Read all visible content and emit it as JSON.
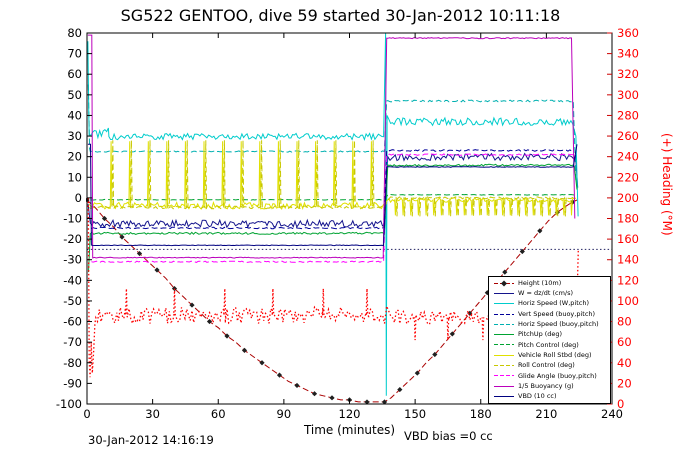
{
  "title": "SG522 GENTOO, dive 59 started 30-Jan-2012 10:11:18",
  "labels": {
    "xlabel": "Time (minutes)",
    "right_ylabel": "(+) Heading (°M)",
    "datetime": "30-Jan-2012 14:16:19",
    "vbd_bias": "VBD bias =0 cc"
  },
  "colors": {
    "axis": "#000000",
    "heading_axis": "#ff0000",
    "background": "#ffffff"
  },
  "chart_data": {
    "type": "line",
    "title": "SG522 GENTOO, dive 59 started 30-Jan-2012 10:11:18",
    "xlabel": "Time (minutes)",
    "right_axis_label": "(+) Heading (°M)",
    "grid": false,
    "legend_position": "bottom-right-inside",
    "xlim": [
      0,
      240
    ],
    "xticks": [
      0,
      30,
      60,
      90,
      120,
      150,
      180,
      210,
      240
    ],
    "left_ylim": [
      -100,
      80
    ],
    "left_yticks": [
      80,
      70,
      60,
      50,
      40,
      30,
      20,
      10,
      0,
      -10,
      -20,
      -30,
      -40,
      -50,
      -60,
      -70,
      -80,
      -90,
      -100
    ],
    "right_ylim": [
      0,
      360
    ],
    "right_yticks": [
      360,
      340,
      320,
      300,
      280,
      260,
      240,
      220,
      200,
      180,
      160,
      140,
      120,
      100,
      80,
      60,
      40,
      20,
      0
    ],
    "dive_bottom_time_min": 137,
    "surface_time_min": 225,
    "reference_lines": [
      {
        "x0": 0,
        "x1": 240,
        "y": -25,
        "color": "#202060",
        "style": "dot"
      }
    ],
    "series": [
      {
        "id": "height",
        "label": "Height (10m)",
        "color": "#aa0000",
        "style": "dash",
        "width": 1,
        "axis": "left",
        "marker": "diamond",
        "marker_color": "#202020",
        "seed": 1,
        "parts": [
          {
            "pts": [
              [
                0,
                -1
              ],
              [
                4,
                -5
              ],
              [
                8,
                -10
              ],
              [
                12,
                -14
              ],
              [
                16,
                -19
              ],
              [
                20,
                -23
              ],
              [
                24,
                -27
              ],
              [
                28,
                -31
              ],
              [
                32,
                -35
              ],
              [
                36,
                -39
              ],
              [
                40,
                -44
              ],
              [
                44,
                -48
              ],
              [
                48,
                -52
              ],
              [
                52,
                -56
              ],
              [
                56,
                -60
              ],
              [
                60,
                -63
              ],
              [
                64,
                -67
              ],
              [
                68,
                -70
              ],
              [
                72,
                -74
              ],
              [
                76,
                -77
              ],
              [
                80,
                -80
              ],
              [
                84,
                -83
              ],
              [
                88,
                -86
              ],
              [
                92,
                -89
              ],
              [
                96,
                -91
              ],
              [
                100,
                -93
              ],
              [
                104,
                -95
              ],
              [
                108,
                -96
              ],
              [
                112,
                -97
              ],
              [
                116,
                -98
              ],
              [
                120,
                -98
              ],
              [
                124,
                -99
              ],
              [
                128,
                -99
              ],
              [
                132,
                -99
              ],
              [
                136,
                -99
              ],
              [
                139,
                -97
              ],
              [
                143,
                -93
              ],
              [
                147,
                -89
              ],
              [
                151,
                -85
              ],
              [
                155,
                -80
              ],
              [
                159,
                -76
              ],
              [
                163,
                -71
              ],
              [
                167,
                -66
              ],
              [
                171,
                -61
              ],
              [
                175,
                -56
              ],
              [
                179,
                -51
              ],
              [
                183,
                -46
              ],
              [
                187,
                -41
              ],
              [
                191,
                -36
              ],
              [
                195,
                -31
              ],
              [
                199,
                -26
              ],
              [
                203,
                -21
              ],
              [
                207,
                -16
              ],
              [
                211,
                -11
              ],
              [
                215,
                -7
              ],
              [
                219,
                -4
              ],
              [
                222,
                -2
              ],
              [
                224,
                -1
              ]
            ]
          }
        ]
      },
      {
        "id": "w_dzdt",
        "label": "W = dz/dt (cm/s)",
        "color": "#14148c",
        "style": "solid",
        "width": 1,
        "axis": "left",
        "seed": 2,
        "parts": [
          {
            "pts": [
              [
                0.5,
                -3
              ]
            ]
          },
          {
            "seg": [
              1.5,
              136,
              -12.5,
              1.7
            ]
          },
          {
            "pts": [
              [
                137.5,
                20
              ]
            ]
          },
          {
            "seg": [
              138.5,
              223.5,
              19.8,
              1.7
            ]
          },
          {
            "pts": [
              [
                224.3,
                5
              ]
            ]
          }
        ]
      },
      {
        "id": "horiz_speed_w_pitch",
        "label": "Horiz Speed (W,pitch)",
        "color": "#00cccc",
        "style": "solid",
        "width": 1,
        "axis": "left",
        "seed": 3,
        "parts": [
          {
            "pts": [
              [
                0.4,
                76
              ],
              [
                0.8,
                40
              ]
            ]
          },
          {
            "seg": [
              1,
              10,
              31.5,
              2.8
            ]
          },
          {
            "seg": [
              10,
              136,
              29.8,
              1.5
            ]
          },
          {
            "pts": [
              [
                136.5,
                80
              ],
              [
                136.8,
                -96
              ],
              [
                137.2,
                40
              ]
            ]
          },
          {
            "seg": [
              138,
              222.5,
              37,
              1.8
            ]
          },
          {
            "pts": [
              [
                223.5,
                30
              ],
              [
                224.5,
                -9
              ]
            ]
          }
        ]
      },
      {
        "id": "vert_speed_buoy_pitch",
        "label": "Vert Speed (buoy,pitch)",
        "color": "#000099",
        "style": "dash",
        "width": 1,
        "axis": "left",
        "seed": 4,
        "parts": [
          {
            "seg": [
              2,
              136,
              -14.6,
              0.35
            ]
          },
          {
            "pts": [
              [
                137,
                23
              ]
            ]
          },
          {
            "seg": [
              137.5,
              223,
              23,
              0.4
            ]
          }
        ]
      },
      {
        "id": "horiz_speed_buoy_pitch",
        "label": "Horiz Speed (buoy,pitch)",
        "color": "#00b0b0",
        "style": "dash",
        "width": 1,
        "axis": "left",
        "seed": 5,
        "parts": [
          {
            "pts": [
              [
                0.6,
                55
              ],
              [
                1.2,
                24
              ]
            ]
          },
          {
            "seg": [
              1.5,
              136,
              22.5,
              0.3
            ]
          },
          {
            "pts": [
              [
                137,
                47
              ]
            ]
          },
          {
            "seg": [
              137.5,
              222.5,
              47,
              0.45
            ]
          },
          {
            "pts": [
              [
                223.5,
                8
              ]
            ]
          }
        ]
      },
      {
        "id": "pitch_up",
        "label": "PitchUp (deg)",
        "color": "#00a332",
        "style": "solid",
        "width": 1,
        "axis": "left",
        "seed": 6,
        "parts": [
          {
            "pts": [
              [
                0.7,
                -36
              ]
            ]
          },
          {
            "seg": [
              1.5,
              136,
              -17.2,
              0.5
            ]
          },
          {
            "pts": [
              [
                137.5,
                16
              ]
            ]
          },
          {
            "seg": [
              138,
              223,
              15.8,
              0.5
            ]
          },
          {
            "pts": [
              [
                224,
                4
              ]
            ]
          }
        ]
      },
      {
        "id": "pitch_control",
        "label": "Pitch Control (deg)",
        "color": "#00a332",
        "style": "dash",
        "width": 1,
        "axis": "left",
        "seed": 7,
        "parts": [
          {
            "seg": [
              1.5,
              136,
              -0.9,
              0.15
            ]
          },
          {
            "pts": [
              [
                137.5,
                1.5
              ]
            ]
          },
          {
            "seg": [
              138,
              223,
              1.5,
              0.15
            ]
          }
        ]
      },
      {
        "id": "vehicle_roll_stbd",
        "label": "Vehicle Roll Stbd (deg)",
        "color": "#e0e000",
        "style": "solid",
        "width": 1,
        "axis": "left",
        "seed": 8,
        "parts": [
          {
            "seg": [
              1,
              136,
              -3.8,
              1.6
            ],
            "spike_xs": [
              11,
              19.5,
              28,
              36.5,
              45,
              53.5,
              62,
              70.5,
              79,
              87.5,
              96,
              104.5,
              113,
              121.5,
              130
            ],
            "spike_y": 27.5
          },
          {
            "seg": [
              138,
              224,
              -1,
              1.1
            ],
            "spike_xs": [
              141,
              144.5,
              148,
              151.5,
              155,
              158.5,
              162,
              165.5,
              169,
              172.5,
              176,
              179.5,
              183,
              186.5,
              190,
              193.5,
              197,
              200.5,
              204,
              207.5,
              211,
              214.5,
              218,
              221.5
            ],
            "spike_y": -8.5
          }
        ]
      },
      {
        "id": "roll_control",
        "label": "Roll Control (deg)",
        "color": "#c8c800",
        "style": "dash",
        "width": 1,
        "axis": "left",
        "seed": 9,
        "parts": [
          {
            "seg": [
              1,
              136,
              -4.6,
              0.7
            ],
            "spike_xs": [
              11.8,
              20.3,
              28.8,
              37.3,
              45.8,
              54.3,
              62.8,
              71.3,
              79.8,
              88.3,
              96.8,
              105.3,
              113.8,
              122.3,
              130.8
            ],
            "spike_y": 28
          },
          {
            "seg": [
              138,
              224,
              0,
              0.5
            ],
            "spike_xs": [
              141.7,
              145.2,
              148.7,
              152.2,
              155.7,
              159.2,
              162.7,
              166.2,
              169.7,
              173.2,
              176.7,
              180.2,
              183.7,
              187.2,
              190.7,
              194.2,
              197.7,
              201.2,
              204.7,
              208.2,
              211.7,
              215.2,
              218.7
            ],
            "spike_y": -9
          }
        ]
      },
      {
        "id": "glide_angle",
        "label": "Glide Angle (buoy,pitch)",
        "color": "#ff00ff",
        "style": "dash",
        "width": 1,
        "axis": "left",
        "seed": 10,
        "parts": [
          {
            "seg": [
              2,
              136,
              -31,
              0.3
            ]
          },
          {
            "pts": [
              [
                137,
                21
              ]
            ]
          },
          {
            "seg": [
              137.5,
              223,
              21,
              0.35
            ]
          }
        ]
      },
      {
        "id": "buoyancy_fifth",
        "label": "1/5 Buoyancy (g)",
        "color": "#bb00bb",
        "style": "solid",
        "width": 1,
        "axis": "left",
        "seed": 11,
        "parts": [
          {
            "pts": [
              [
                0.4,
                79
              ],
              [
                2.2,
                79
              ],
              [
                2.6,
                -29
              ]
            ]
          },
          {
            "seg": [
              2.6,
              136,
              -29,
              0.2
            ]
          },
          {
            "pts": [
              [
                137,
                77.5
              ]
            ]
          },
          {
            "seg": [
              137.5,
              222,
              77.5,
              0.25
            ]
          },
          {
            "pts": [
              [
                223,
                -10
              ]
            ]
          }
        ]
      },
      {
        "id": "vbd",
        "label": "VBD (10 cc)",
        "color": "#000080",
        "style": "solid",
        "width": 1,
        "axis": "left",
        "seed": 12,
        "parts": [
          {
            "pts": [
              [
                0.4,
                26
              ],
              [
                1.6,
                26
              ],
              [
                2,
                -23
              ]
            ]
          },
          {
            "seg": [
              2,
              136,
              -23,
              0.15
            ]
          },
          {
            "pts": [
              [
                137,
                15
              ]
            ]
          },
          {
            "seg": [
              137.5,
              223,
              15,
              0.15
            ]
          },
          {
            "pts": [
              [
                224,
                26
              ]
            ]
          }
        ]
      },
      {
        "id": "heading",
        "label": null,
        "color": "#ff0000",
        "style": "dot",
        "width": 1.3,
        "axis": "right",
        "seed": 13,
        "parts": [
          {
            "pts": [
              [
                0.6,
                200
              ],
              [
                1,
                42
              ],
              [
                1.4,
                26
              ],
              [
                1.9,
                60
              ],
              [
                2.4,
                30
              ],
              [
                3,
                50
              ],
              [
                3.6,
                78
              ]
            ]
          },
          {
            "seg": [
              4,
              136,
              86,
              8
            ],
            "spike_xs": [
              18,
              40,
              63,
              85,
              108,
              128
            ],
            "spike_y": 112
          },
          {
            "pts": [
              [
                137,
                95
              ]
            ]
          },
          {
            "seg": [
              139,
              224,
              84,
              7
            ],
            "spike_xs": [
              150,
              165,
              181,
              196,
              210
            ],
            "spike_y": 62
          },
          {
            "pts": [
              [
                224.6,
                150
              ]
            ]
          }
        ]
      }
    ]
  }
}
